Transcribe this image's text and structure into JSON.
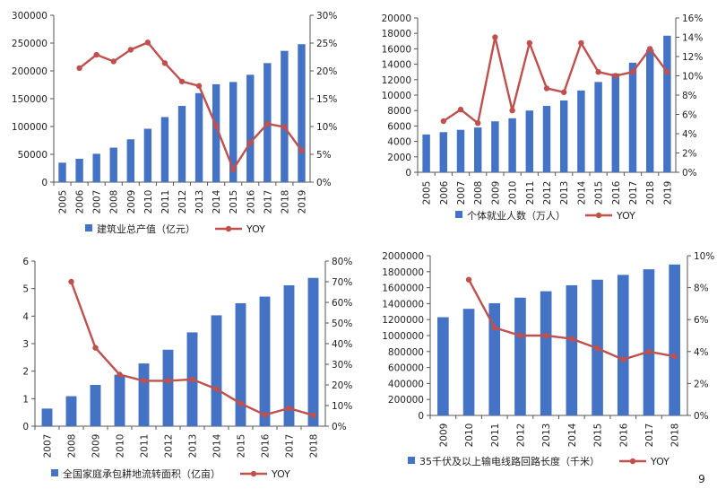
{
  "colors": {
    "bar": "#4472C4",
    "line": "#C0504D",
    "axis": "#555555",
    "text": "#222222",
    "background": "#ffffff"
  },
  "page_marker": "9",
  "chart_data": [
    {
      "type": "bar",
      "title": "",
      "categories": [
        "2005",
        "2006",
        "2007",
        "2008",
        "2009",
        "2010",
        "2011",
        "2012",
        "2013",
        "2014",
        "2015",
        "2016",
        "2017",
        "2018",
        "2019"
      ],
      "series": [
        {
          "name": "建筑业总产值（亿元）",
          "axis": "left",
          "kind": "bar",
          "values": [
            35000,
            42000,
            51000,
            62000,
            77000,
            96000,
            117000,
            137000,
            160000,
            176000,
            180000,
            193000,
            214000,
            236000,
            248000
          ]
        },
        {
          "name": "YOY",
          "axis": "right",
          "kind": "line",
          "values": [
            null,
            0.205,
            0.229,
            0.217,
            0.238,
            0.251,
            0.214,
            0.181,
            0.173,
            0.101,
            0.023,
            0.071,
            0.105,
            0.099,
            0.057
          ]
        }
      ],
      "yleft": {
        "min": 0,
        "max": 300000,
        "ticks": [
          0,
          50000,
          100000,
          150000,
          200000,
          250000,
          300000
        ],
        "labels": [
          "0",
          "50000",
          "100000",
          "150000",
          "200000",
          "250000",
          "300000"
        ]
      },
      "yright": {
        "min": 0,
        "max": 0.3,
        "ticks": [
          0,
          0.05,
          0.1,
          0.15,
          0.2,
          0.25,
          0.3
        ],
        "labels": [
          "0%",
          "5%",
          "10%",
          "15%",
          "20%",
          "25%",
          "30%"
        ]
      },
      "legend_position": "bottom"
    },
    {
      "type": "bar",
      "title": "",
      "categories": [
        "2005",
        "2006",
        "2007",
        "2008",
        "2009",
        "2010",
        "2011",
        "2012",
        "2013",
        "2014",
        "2015",
        "2016",
        "2017",
        "2018",
        "2019"
      ],
      "series": [
        {
          "name": "个体就业人数（万人）",
          "axis": "left",
          "kind": "bar",
          "values": [
            4900,
            5200,
            5500,
            5800,
            6600,
            7000,
            8000,
            8600,
            9300,
            10600,
            11700,
            12800,
            14200,
            15900,
            17700
          ]
        },
        {
          "name": "YOY",
          "axis": "right",
          "kind": "line",
          "values": [
            null,
            0.053,
            0.065,
            0.051,
            0.14,
            0.064,
            0.134,
            0.087,
            0.083,
            0.134,
            0.104,
            0.1,
            0.104,
            0.128,
            0.104
          ]
        }
      ],
      "yleft": {
        "min": 0,
        "max": 20000,
        "ticks": [
          0,
          2000,
          4000,
          6000,
          8000,
          10000,
          12000,
          14000,
          16000,
          18000,
          20000
        ],
        "labels": [
          "0",
          "2000",
          "4000",
          "6000",
          "8000",
          "10000",
          "12000",
          "14000",
          "16000",
          "18000",
          "20000"
        ]
      },
      "yright": {
        "min": 0,
        "max": 0.16,
        "ticks": [
          0,
          0.02,
          0.04,
          0.06,
          0.08,
          0.1,
          0.12,
          0.14,
          0.16
        ],
        "labels": [
          "0%",
          "2%",
          "4%",
          "6%",
          "8%",
          "10%",
          "12%",
          "14%",
          "16%"
        ]
      },
      "legend_position": "bottom"
    },
    {
      "type": "bar",
      "title": "",
      "categories": [
        "2007",
        "2008",
        "2009",
        "2010",
        "2011",
        "2012",
        "2013",
        "2014",
        "2015",
        "2016",
        "2017",
        "2018"
      ],
      "series": [
        {
          "name": "全国家庭承包耕地流转面积（亿亩）",
          "axis": "left",
          "kind": "bar",
          "values": [
            0.64,
            1.09,
            1.5,
            1.87,
            2.28,
            2.78,
            3.41,
            4.03,
            4.47,
            4.71,
            5.12,
            5.39
          ]
        },
        {
          "name": "YOY",
          "axis": "right",
          "kind": "line",
          "values": [
            null,
            0.7,
            0.38,
            0.25,
            0.22,
            0.22,
            0.227,
            0.18,
            0.11,
            0.055,
            0.087,
            0.053
          ]
        }
      ],
      "yleft": {
        "min": 0,
        "max": 6,
        "ticks": [
          0,
          1,
          2,
          3,
          4,
          5,
          6
        ],
        "labels": [
          "0",
          "1",
          "2",
          "3",
          "4",
          "5",
          "6"
        ]
      },
      "yright": {
        "min": 0,
        "max": 0.8,
        "ticks": [
          0,
          0.1,
          0.2,
          0.3,
          0.4,
          0.5,
          0.6,
          0.7,
          0.8
        ],
        "labels": [
          "0%",
          "10%",
          "20%",
          "30%",
          "40%",
          "50%",
          "60%",
          "70%",
          "80%"
        ]
      },
      "legend_position": "bottom"
    },
    {
      "type": "bar",
      "title": "",
      "categories": [
        "2009",
        "2010",
        "2011",
        "2012",
        "2013",
        "2014",
        "2015",
        "2016",
        "2017",
        "2018"
      ],
      "series": [
        {
          "name": "35千伏及以上输电线路回路长度（千米）",
          "axis": "left",
          "kind": "bar",
          "values": [
            1230000,
            1335000,
            1405000,
            1475000,
            1555000,
            1630000,
            1700000,
            1760000,
            1830000,
            1890000
          ]
        },
        {
          "name": "YOY",
          "axis": "right",
          "kind": "line",
          "values": [
            null,
            0.085,
            0.055,
            0.05,
            0.05,
            0.048,
            0.042,
            0.035,
            0.04,
            0.037
          ]
        }
      ],
      "yleft": {
        "min": 0,
        "max": 2000000,
        "ticks": [
          0,
          200000,
          400000,
          600000,
          800000,
          1000000,
          1200000,
          1400000,
          1600000,
          1800000,
          2000000
        ],
        "labels": [
          "0",
          "200000",
          "400000",
          "600000",
          "800000",
          "1000000",
          "1200000",
          "1400000",
          "1600000",
          "1800000",
          "2000000"
        ]
      },
      "yright": {
        "min": 0,
        "max": 0.1,
        "ticks": [
          0,
          0.02,
          0.04,
          0.06,
          0.08,
          0.1
        ],
        "labels": [
          "0%",
          "2%",
          "4%",
          "6%",
          "8%",
          "10%"
        ]
      },
      "legend_position": "bottom"
    }
  ]
}
